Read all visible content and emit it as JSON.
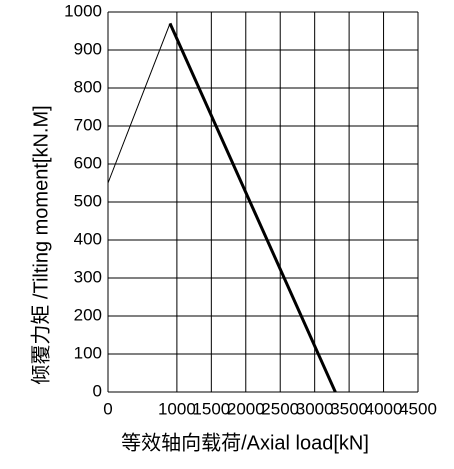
{
  "chart_data": {
    "type": "line",
    "xlabel": "等效轴向载荷/Axial load[kN]",
    "ylabel": "倾覆力矩 /Tilting moment[kN.M]",
    "series": [
      {
        "x": [
          0,
          900
        ],
        "values": [
          550,
          970
        ],
        "color": "#000000",
        "linewidth": 1
      },
      {
        "x": [
          900,
          3300
        ],
        "values": [
          970,
          0
        ],
        "color": "#000000",
        "linewidth": 3
      }
    ],
    "xlim": [
      0,
      4500
    ],
    "xticks": [
      0,
      1000,
      1500,
      2000,
      2500,
      3000,
      3500,
      4000,
      4500
    ],
    "ylim": [
      0,
      1000
    ],
    "yticks": [
      0,
      100,
      200,
      300,
      400,
      500,
      600,
      700,
      800,
      900,
      1000
    ],
    "grid": true
  }
}
